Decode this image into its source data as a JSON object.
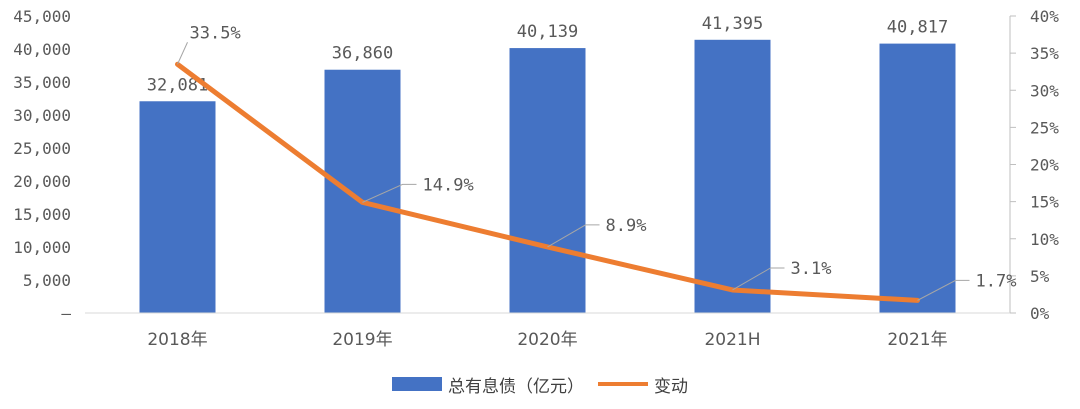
{
  "chart_data": {
    "type": "bar",
    "categories": [
      "2018年",
      "2019年",
      "2020年",
      "2021H",
      "2021年"
    ],
    "series": [
      {
        "name": "总有息债（亿元）",
        "type": "bar",
        "axis": "left",
        "values": [
          32081,
          36860,
          40139,
          41395,
          40817
        ],
        "labels": [
          "32,081",
          "36,860",
          "40,139",
          "41,395",
          "40,817"
        ],
        "color": "#4472C4"
      },
      {
        "name": "变动",
        "type": "line",
        "axis": "right",
        "values": [
          33.5,
          14.9,
          8.9,
          3.1,
          1.7
        ],
        "labels": [
          "33.5%",
          "14.9%",
          "8.9%",
          "3.1%",
          "1.7%"
        ],
        "color": "#ED7D31"
      }
    ],
    "left_axis": {
      "ylim": [
        0,
        45000
      ],
      "ticks": [
        "–",
        "5,000",
        "10,000",
        "15,000",
        "20,000",
        "25,000",
        "30,000",
        "35,000",
        "40,000",
        "45,000"
      ]
    },
    "right_axis": {
      "ylim": [
        0,
        40
      ],
      "ticks": [
        "0%",
        "5%",
        "10%",
        "15%",
        "20%",
        "25%",
        "30%",
        "35%",
        "40%"
      ]
    },
    "grid": false,
    "legend_position": "bottom"
  }
}
